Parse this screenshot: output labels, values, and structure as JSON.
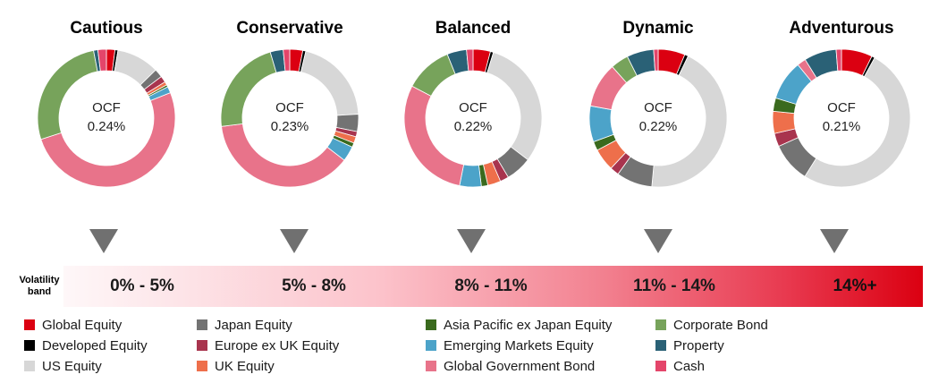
{
  "chart_data": {
    "type": "pie",
    "series_order": [
      "Global Equity",
      "Developed Equity",
      "US Equity",
      "Japan Equity",
      "Europe ex UK Equity",
      "UK Equity",
      "Asia Pacific ex Japan Equity",
      "Emerging Markets Equity",
      "Global Government Bond",
      "Corporate Bond",
      "Property",
      "Cash"
    ],
    "colors": {
      "Global Equity": "#db0011",
      "Developed Equity": "#000000",
      "US Equity": "#d7d7d7",
      "Japan Equity": "#737373",
      "Europe ex UK Equity": "#a8344e",
      "UK Equity": "#ee6f4b",
      "Asia Pacific ex Japan Equity": "#3a6a1e",
      "Emerging Markets Equity": "#4ca3c9",
      "Global Government Bond": "#e8738a",
      "Corporate Bond": "#77a35b",
      "Property": "#2a6176",
      "Cash": "#e4456a"
    },
    "funds": [
      {
        "name": "Cautious",
        "ocf_label": "OCF",
        "ocf": "0.24%",
        "values": [
          2,
          0.7,
          10,
          2,
          1.5,
          0.8,
          0.5,
          1.5,
          51,
          27,
          1,
          2
        ]
      },
      {
        "name": "Conservative",
        "ocf_label": "OCF",
        "ocf": "0.23%",
        "values": [
          3,
          0.7,
          20,
          4,
          1.2,
          1.5,
          1,
          3.5,
          37,
          22,
          3,
          1.5
        ]
      },
      {
        "name": "Balanced",
        "ocf_label": "OCF",
        "ocf": "0.22%",
        "values": [
          4,
          0.7,
          30,
          6,
          2,
          3,
          1.5,
          5,
          29,
          11,
          4.5,
          1.5
        ]
      },
      {
        "name": "Dynamic",
        "ocf_label": "OCF",
        "ocf": "0.22%",
        "values": [
          6,
          0.8,
          42,
          8,
          2,
          5,
          2,
          8,
          10,
          4,
          6,
          1
        ]
      },
      {
        "name": "Adventurous",
        "ocf_label": "OCF",
        "ocf": "0.21%",
        "values": [
          7,
          0.7,
          49,
          9,
          3,
          5,
          3,
          9,
          2,
          0,
          7.3,
          1.2
        ]
      }
    ],
    "volatility_label": "Volatility band",
    "volatility_bands": [
      "0% - 5%",
      "5% - 8%",
      "8% - 11%",
      "11% - 14%",
      "14%+"
    ]
  },
  "legend": [
    [
      "Global Equity",
      "Developed Equity",
      "US Equity"
    ],
    [
      "Japan Equity",
      "Europe ex UK Equity",
      "UK Equity"
    ],
    [
      "Asia Pacific ex Japan Equity",
      "Emerging Markets Equity",
      "Global Government Bond"
    ],
    [
      "Corporate Bond",
      "Property",
      "Cash"
    ]
  ]
}
